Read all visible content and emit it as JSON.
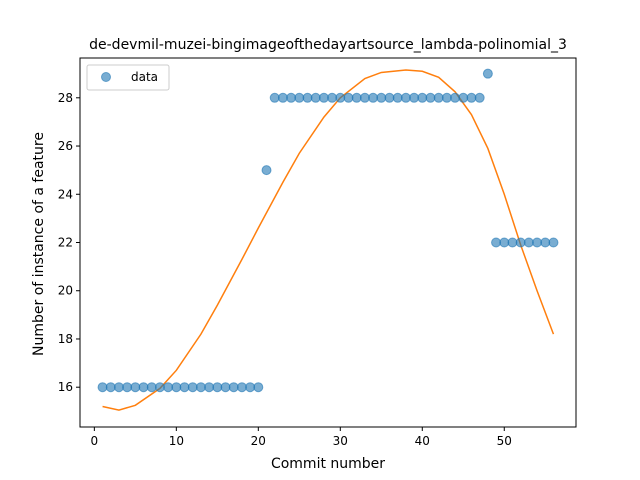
{
  "chart_data": {
    "type": "scatter",
    "title": "de-devmil-muzei-bingimageofthedayartsource_lambda-polinomial_3",
    "xlabel": "Commit number",
    "ylabel": "Number of instance of a feature",
    "xlim": [
      -1.75,
      58.75
    ],
    "ylim": [
      14.35,
      29.65
    ],
    "xticks": [
      0,
      10,
      20,
      30,
      40,
      50
    ],
    "yticks": [
      16,
      18,
      20,
      22,
      24,
      26,
      28
    ],
    "grid": false,
    "legend": {
      "position": "top-left",
      "entries": [
        "data"
      ]
    },
    "series": [
      {
        "name": "data",
        "kind": "scatter",
        "color": "#1f77b4",
        "x": [
          1,
          2,
          3,
          4,
          5,
          6,
          7,
          8,
          9,
          10,
          11,
          12,
          13,
          14,
          15,
          16,
          17,
          18,
          19,
          20,
          21,
          22,
          23,
          24,
          25,
          26,
          27,
          28,
          29,
          30,
          31,
          32,
          33,
          34,
          35,
          36,
          37,
          38,
          39,
          40,
          41,
          42,
          43,
          44,
          45,
          46,
          47,
          48,
          49,
          50,
          51,
          52,
          53,
          54,
          55,
          56
        ],
        "y": [
          16,
          16,
          16,
          16,
          16,
          16,
          16,
          16,
          16,
          16,
          16,
          16,
          16,
          16,
          16,
          16,
          16,
          16,
          16,
          16,
          25,
          28,
          28,
          28,
          28,
          28,
          28,
          28,
          28,
          28,
          28,
          28,
          28,
          28,
          28,
          28,
          28,
          28,
          28,
          28,
          28,
          28,
          28,
          28,
          28,
          28,
          28,
          29,
          22,
          22,
          22,
          22,
          22,
          22,
          22,
          22
        ]
      },
      {
        "kind": "line",
        "color": "#ff7f0e",
        "x": [
          1,
          3,
          5,
          8,
          10,
          13,
          15,
          18,
          20,
          23,
          25,
          28,
          30,
          33,
          35,
          38,
          40,
          42,
          44,
          46,
          48,
          50,
          52,
          54,
          56
        ],
        "y": [
          15.2,
          15.05,
          15.25,
          15.95,
          16.7,
          18.2,
          19.4,
          21.3,
          22.6,
          24.5,
          25.7,
          27.2,
          28.0,
          28.8,
          29.05,
          29.15,
          29.1,
          28.85,
          28.25,
          27.3,
          25.9,
          24.0,
          21.9,
          20.0,
          18.2
        ]
      }
    ]
  }
}
